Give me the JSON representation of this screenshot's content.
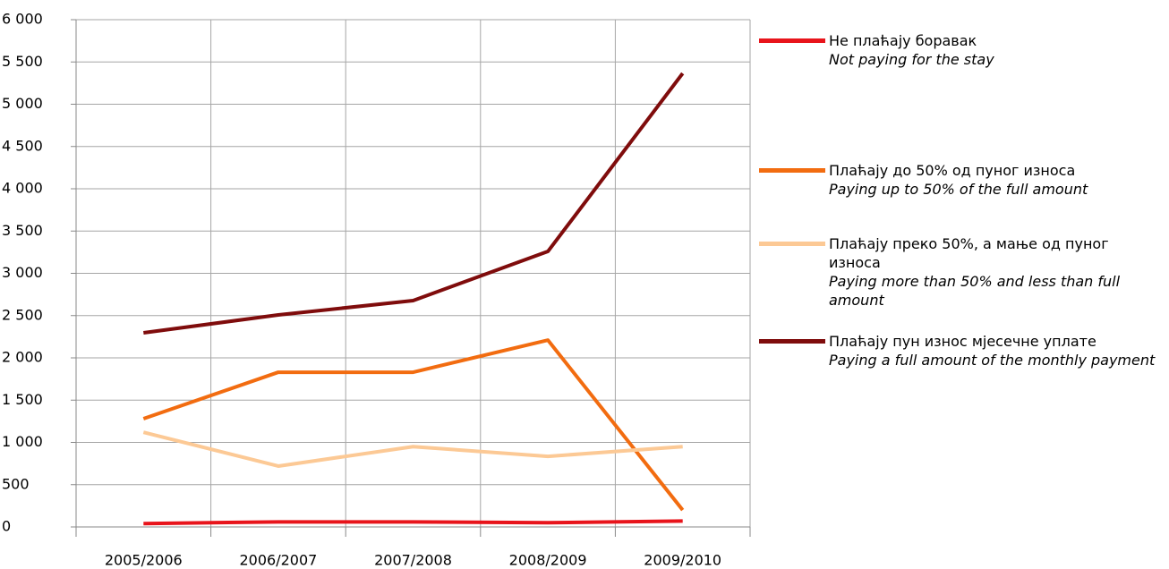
{
  "chart_data": {
    "type": "line",
    "categories": [
      "2005/2006",
      "2006/2007",
      "2007/2008",
      "2008/2009",
      "2009/2010"
    ],
    "series": [
      {
        "name": "Не плаћају боравак",
        "name_en": "Not paying for the stay",
        "color": "#e8141b",
        "values": [
          40,
          60,
          60,
          50,
          70
        ]
      },
      {
        "name": "Плаћају до 50% од пуног износа",
        "name_en": "Paying up to 50% of the full amount",
        "color": "#f26c10",
        "values": [
          1280,
          1830,
          1830,
          2210,
          200
        ]
      },
      {
        "name": "Плаћају преко 50%, а мање од пуног износа",
        "name_en": "Paying more than 50% and less than full amount",
        "color": "#fcc995",
        "values": [
          1120,
          720,
          950,
          835,
          950
        ]
      },
      {
        "name": "Плаћају пун износ мјесечне уплате",
        "name_en": "Paying a full amount of the monthly payment",
        "color": "#7f0c0c",
        "values": [
          2296,
          2508,
          2677,
          3259,
          5365
        ]
      }
    ],
    "ylim": [
      0,
      6000
    ],
    "yticks": [
      0,
      500,
      {
        "value": 1000,
        "label": "1 000"
      },
      {
        "value": 1500,
        "label": "1 500"
      },
      {
        "value": 2000,
        "label": "2 000"
      },
      {
        "value": 2500,
        "label": "2 500"
      },
      {
        "value": 3000,
        "label": "3 000"
      },
      {
        "value": 3500,
        "label": "3 500"
      },
      {
        "value": 4000,
        "label": "4 000"
      },
      {
        "value": 4500,
        "label": "4 500"
      },
      {
        "value": 5000,
        "label": "5 000"
      },
      {
        "value": 5500,
        "label": "5 500"
      },
      {
        "value": 6000,
        "label": "6 000"
      }
    ],
    "grid": true
  }
}
